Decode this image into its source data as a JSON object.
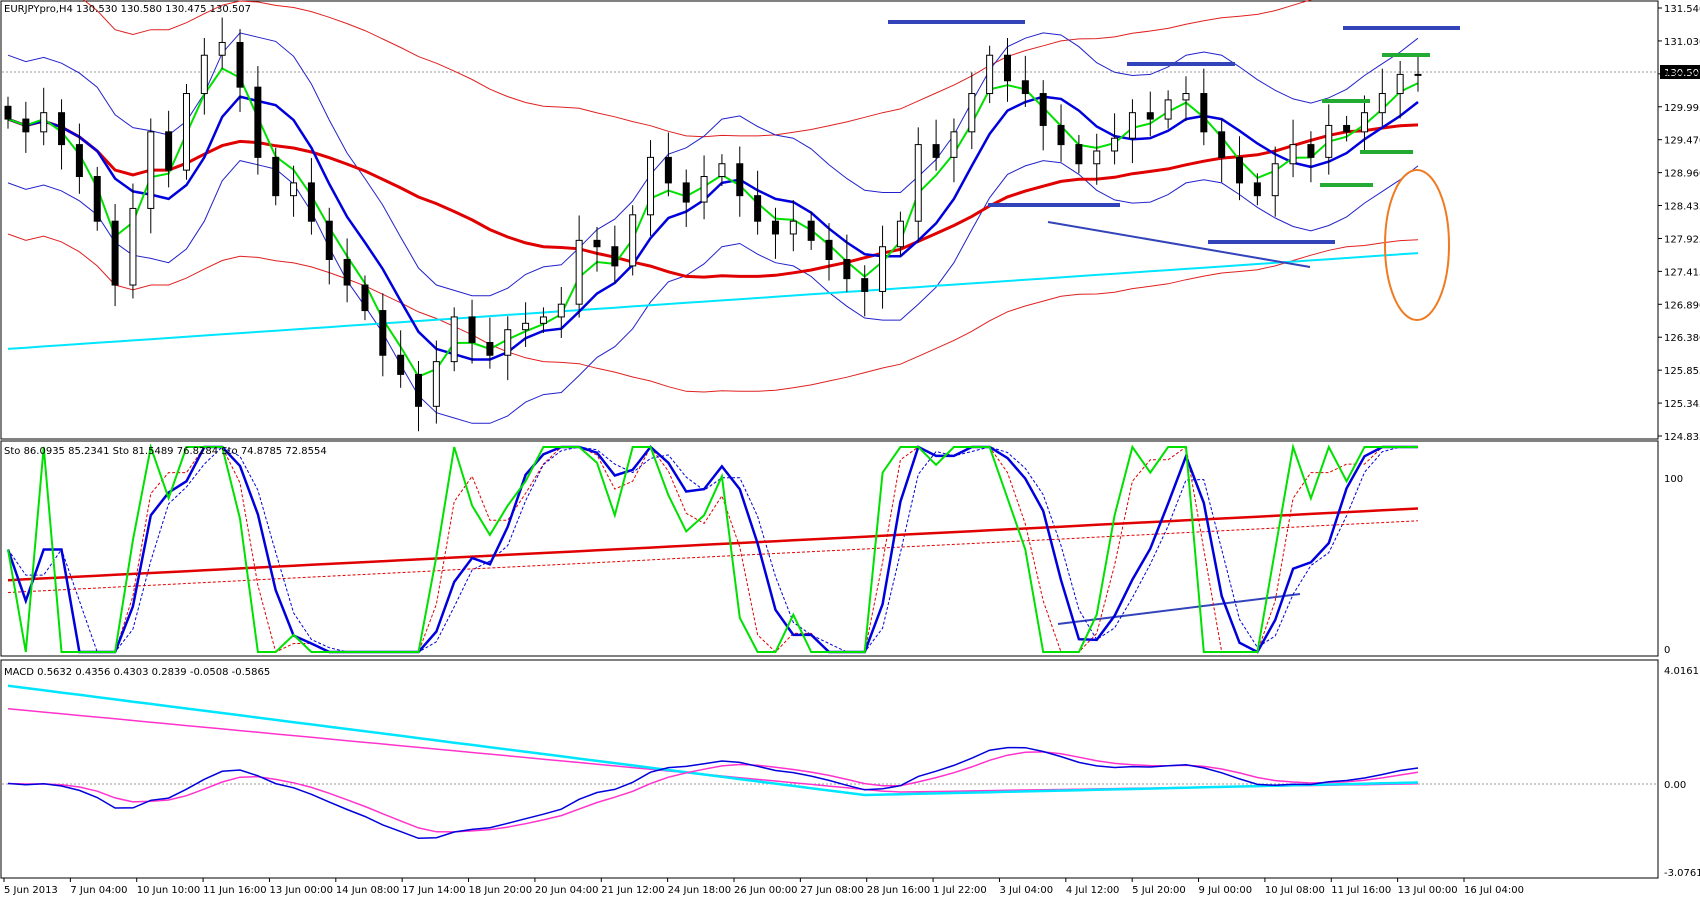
{
  "window": {
    "header": "EURJPYpro,H4  130.530 130.580 130.475 130.507",
    "current_price": "130.507"
  },
  "price_axis": {
    "ticks": [
      "131.540",
      "131.030",
      "130.505",
      "129.995",
      "129.470",
      "128.960",
      "128.435",
      "127.925",
      "127.415",
      "126.890",
      "126.380",
      "125.855",
      "125.345",
      "124.835"
    ]
  },
  "stoch_panel": {
    "header": "Sto 86.0935 85.2341  Sto 81.5489 76.8284  Sto 74.8785 72.8554",
    "ticks": [
      "100",
      "0"
    ]
  },
  "macd_panel": {
    "header": "MACD 0.5632 0.4356 0.4303 0.2839 -0.0508 -0.5865",
    "ticks": [
      "4.0161",
      "0.00",
      "-3.0761"
    ]
  },
  "time_axis": {
    "labels": [
      "5 Jun 2013",
      "7 Jun 04:00",
      "10 Jun 10:00",
      "11 Jun 16:00",
      "13 Jun 00:00",
      "14 Jun 08:00",
      "17 Jun 14:00",
      "18 Jun 20:00",
      "20 Jun 04:00",
      "21 Jun 12:00",
      "24 Jun 18:00",
      "26 Jun 00:00",
      "27 Jun 08:00",
      "28 Jun 16:00",
      "1 Jul 22:00",
      "3 Jul 04:00",
      "4 Jul 12:00",
      "5 Jul 20:00",
      "9 Jul 00:00",
      "10 Jul 08:00",
      "11 Jul 16:00",
      "13 Jul 00:00",
      "16 Jul 04:00"
    ]
  },
  "colors": {
    "background": "#ffffff",
    "grid_frame": "#000000",
    "bull_candle": "#ffffff",
    "bear_candle": "#000000",
    "ema_green": "#00e000",
    "sma_blue": "#0000dd",
    "ma_red": "#e00000",
    "ma_cyan": "#00e5ff",
    "bollinger_thin_blue": "#2222cc",
    "envelope_thin_red": "#e02020",
    "resistance_blue": "#3344bb",
    "pattern_green": "#22aa33",
    "highlight_orange": "#f07a20",
    "macd_pink": "#ff33cc"
  },
  "chart_data": {
    "type": "candlestick",
    "symbol": "EURJPYpro",
    "timeframe": "H4",
    "ohlc_last": {
      "open": 130.53,
      "high": 130.58,
      "low": 130.475,
      "close": 130.507
    },
    "ylim": [
      124.835,
      131.54
    ],
    "x_range": [
      "5 Jun 2013",
      "16 Jul 04:00"
    ],
    "closes_approx": [
      129.8,
      129.6,
      129.9,
      129.4,
      128.9,
      128.2,
      127.2,
      128.4,
      129.6,
      129.0,
      130.2,
      130.8,
      131.0,
      130.3,
      129.2,
      128.6,
      128.8,
      128.2,
      127.6,
      127.2,
      126.8,
      126.1,
      125.8,
      125.3,
      126.0,
      126.7,
      126.3,
      126.1,
      126.5,
      126.6,
      126.7,
      126.9,
      127.9,
      127.8,
      127.5,
      128.3,
      129.2,
      128.8,
      128.5,
      128.9,
      129.1,
      128.6,
      128.2,
      128.0,
      128.2,
      127.9,
      127.6,
      127.3,
      127.1,
      127.8,
      128.2,
      129.4,
      129.2,
      129.6,
      130.2,
      130.8,
      130.4,
      130.2,
      129.7,
      129.4,
      129.1,
      129.3,
      129.5,
      129.9,
      129.8,
      130.1,
      130.2,
      129.6,
      129.2,
      128.8,
      128.6,
      129.1,
      129.4,
      129.2,
      129.7,
      129.6,
      129.9,
      130.2,
      130.5,
      130.5
    ],
    "indicators": {
      "stochastic": [
        {
          "k": 86.0935,
          "d": 85.2341
        },
        {
          "k": 81.5489,
          "d": 76.8284
        },
        {
          "k": 74.8785,
          "d": 72.8554
        }
      ],
      "macd": [
        0.5632,
        0.4356,
        0.4303,
        0.2839,
        -0.0508,
        -0.5865
      ],
      "stoch_ylim": [
        0,
        100
      ],
      "macd_ylim": [
        -3.0761,
        4.0161
      ]
    }
  }
}
